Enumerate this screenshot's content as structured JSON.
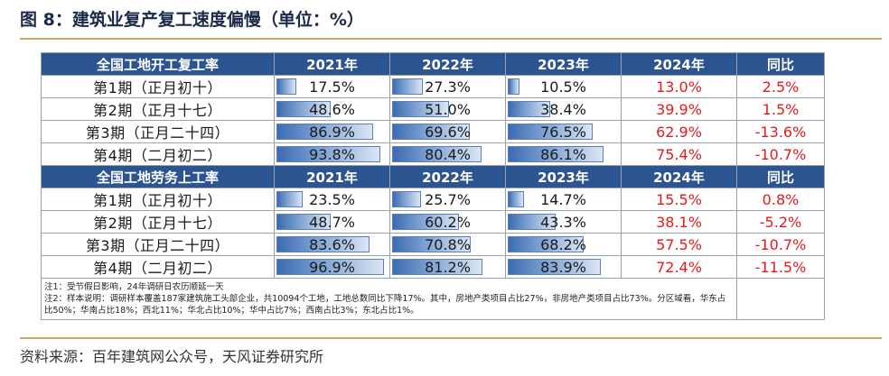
{
  "title": "图 8：建筑业复产复工速度偏慢（单位：%）",
  "source": "资料来源：百年建筑网公众号，天风证券研究所",
  "colors": {
    "header_bg": "#2c5490",
    "positive_red": "#e31b1b",
    "bar": "#3c6bb2",
    "rule": "#c9a86a"
  },
  "sections": [
    {
      "header": [
        "全国工地开工复工率",
        "2021年",
        "2022年",
        "2023年",
        "2024年",
        "同比"
      ],
      "rows": [
        {
          "label": "第1期（正月初十）",
          "v2021": "17.5%",
          "b2021": 17.5,
          "v2022": "27.3%",
          "b2022": 27.3,
          "v2023": "10.5%",
          "b2023": 10.5,
          "v2024": "13.0%",
          "yoy": "2.5%"
        },
        {
          "label": "第2期（正月十七）",
          "v2021": "48.6%",
          "b2021": 48.6,
          "v2022": "51.0%",
          "b2022": 51.0,
          "v2023": "38.4%",
          "b2023": 38.4,
          "v2024": "39.9%",
          "yoy": "1.5%"
        },
        {
          "label": "第3期（正月二十四）",
          "v2021": "86.9%",
          "b2021": 86.9,
          "v2022": "69.6%",
          "b2022": 69.6,
          "v2023": "76.5%",
          "b2023": 76.5,
          "v2024": "62.9%",
          "yoy": "-13.6%"
        },
        {
          "label": "第4期（二月初二）",
          "v2021": "93.8%",
          "b2021": 93.8,
          "v2022": "80.4%",
          "b2022": 80.4,
          "v2023": "86.1%",
          "b2023": 86.1,
          "v2024": "75.4%",
          "yoy": "-10.7%"
        }
      ]
    },
    {
      "header": [
        "全国工地劳务上工率",
        "2021年",
        "2022年",
        "2023年",
        "2024年",
        "同比"
      ],
      "rows": [
        {
          "label": "第1期（正月初十）",
          "v2021": "23.5%",
          "b2021": 23.5,
          "v2022": "25.7%",
          "b2022": 25.7,
          "v2023": "14.7%",
          "b2023": 14.7,
          "v2024": "15.5%",
          "yoy": "0.8%"
        },
        {
          "label": "第2期（正月十七）",
          "v2021": "48.7%",
          "b2021": 48.7,
          "v2022": "60.2%",
          "b2022": 60.2,
          "v2023": "43.3%",
          "b2023": 43.3,
          "v2024": "38.1%",
          "yoy": "-5.2%"
        },
        {
          "label": "第3期（正月二十四）",
          "v2021": "83.6%",
          "b2021": 83.6,
          "v2022": "70.8%",
          "b2022": 70.8,
          "v2023": "68.2%",
          "b2023": 68.2,
          "v2024": "57.5%",
          "yoy": "-10.7%"
        },
        {
          "label": "第4期（二月初二）",
          "v2021": "96.9%",
          "b2021": 96.9,
          "v2022": "81.2%",
          "b2022": 81.2,
          "v2023": "83.9%",
          "b2023": 83.9,
          "v2024": "72.4%",
          "yoy": "-11.5%"
        }
      ]
    }
  ],
  "notes": [
    "注1：受节假日影响，24年调研日农历顺延一天",
    "注2：样本说明：调研样本覆盖187家建筑施工头部企业，共10094个工地，工地总数同比下降17%。其中，房地产类项目占比27%，非房地产类项目占比73%。分区域看，华东占比50%；华南占比18%；西北11%；华北占比10%；华中占比7%；西南占比3%；东北占比1%。"
  ]
}
